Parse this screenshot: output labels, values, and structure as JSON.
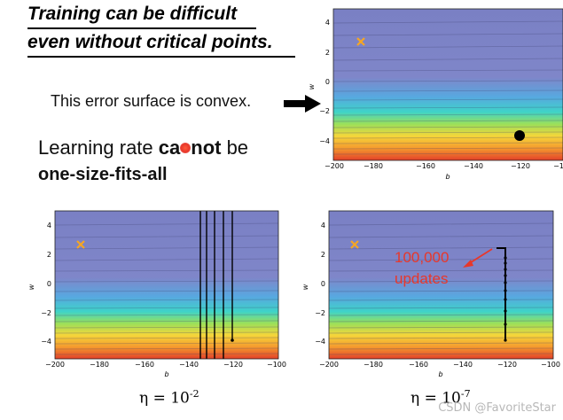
{
  "slide": {
    "title_line1": "Training can be difficult",
    "title_line2": "even without critical points.",
    "convex_note": "This error surface is convex.",
    "lr_text_prefix": "Learning rate ",
    "lr_text_bold1": "ca",
    "lr_text_bold2": "not",
    "lr_text_suffix": " be",
    "lr_line2": "one-size-fits-all"
  },
  "plots": {
    "top_right": {
      "x_ticks": [
        "−200",
        "−180",
        "−160",
        "−140",
        "−120",
        "−1"
      ],
      "y_ticks": [
        "4",
        "2",
        "0",
        "−2",
        "−4"
      ],
      "xlabel": "b",
      "ylabel": "w"
    },
    "bottom_left": {
      "x_ticks": [
        "−200",
        "−180",
        "−160",
        "−140",
        "−120",
        "−100"
      ],
      "y_ticks": [
        "4",
        "2",
        "0",
        "−2",
        "−4"
      ],
      "xlabel": "b",
      "ylabel": "w",
      "eta_label": "η = 10",
      "eta_exp": "-2"
    },
    "bottom_right": {
      "x_ticks": [
        "−200",
        "−180",
        "−160",
        "−140",
        "−120",
        "−100"
      ],
      "y_ticks": [
        "4",
        "2",
        "0",
        "−2",
        "−4"
      ],
      "xlabel": "b",
      "ylabel": "w",
      "eta_label": "η = 10",
      "eta_exp": "-7",
      "annotation_line1": "100,000",
      "annotation_line2": "updates"
    }
  },
  "colors": {
    "annotation_red": "#e8372a",
    "minimum_marker": "#f5a623"
  },
  "watermark": "CSDN @FavoriteStar"
}
